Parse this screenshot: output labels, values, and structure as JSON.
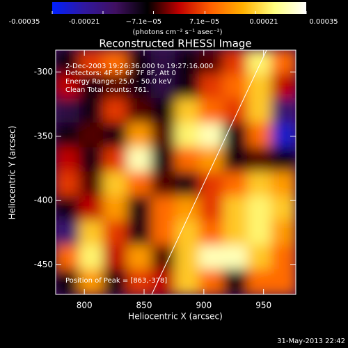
{
  "chart_data": {
    "type": "heatmap",
    "title": "Reconstructed RHESSI Image",
    "xlabel": "Heliocentric X (arcsec)",
    "ylabel": "Heliocentric Y (arcsec)",
    "annotations": [
      "2-Dec-2003 19:26:36.000 to 19:27:16.000",
      "Detectors: 4F 5F 6F 7F 8F, Att 0",
      "Energy Range: 25.0 - 50.0 keV",
      "Clean    Total counts: 761."
    ],
    "peak_label": "Position of Peak = [863,-378]",
    "footer": "31-May-2013 22:42",
    "colorbar_label": "(photons cm⁻² s⁻¹ asec⁻²)",
    "clim": [
      -0.00035,
      0.00035
    ],
    "cticks": [
      -0.00035,
      -0.00021,
      {
        "value": -7.1e-05,
        "label": "−7.1e−05"
      },
      {
        "value": 7.1e-05,
        "label": "7.1e−05"
      },
      0.00021,
      0.00035
    ],
    "colormap": [
      "#0020ff",
      "#3018a0",
      "#401060",
      "#000000",
      "#c00000",
      "#ff6000",
      "#ffb000",
      "#ffff80",
      "#ffffff"
    ],
    "xlim": [
      776,
      977
    ],
    "ylim": [
      -473,
      -283
    ],
    "xticks": [
      800,
      850,
      900,
      950
    ],
    "yticks": [
      -300,
      -350,
      -400,
      -450
    ],
    "values": [
      [
        -0.0001,
        5e-05,
        0.0001,
        -0.0001,
        -0.00015,
        -0.0001,
        -5e-05,
        5e-05,
        0.00025,
        0.0001
      ],
      [
        0,
        -0.0001,
        -5e-05,
        -0.0001,
        -0.00015,
        -0.0001,
        5e-05,
        0.0001,
        0.0002,
        0
      ],
      [
        -0.00015,
        -0.0001,
        5e-05,
        -5e-05,
        -0.0001,
        0.0002,
        0.0001,
        5e-05,
        0.0002,
        -0.0002
      ],
      [
        -0.0001,
        -5e-05,
        -0.0001,
        0.00015,
        -5e-05,
        0.00025,
        0.0003,
        -0.0001,
        0.0001,
        -0.0003
      ],
      [
        0,
        -0.0001,
        5e-05,
        0.0003,
        -0.0001,
        0.0001,
        0.00015,
        -0.0001,
        -5e-05,
        -0.0001
      ],
      [
        5e-05,
        -5e-05,
        0.0002,
        0.0001,
        -5e-05,
        -0.0001,
        5e-05,
        0.0001,
        0.0002,
        0.00015
      ],
      [
        -0.0001,
        0,
        0.00015,
        -0.0001,
        0.0001,
        0.00015,
        5e-05,
        0.0002,
        0.00025,
        0.0002
      ],
      [
        -0.0002,
        0.0002,
        5e-05,
        -0.0001,
        0.0001,
        0.0002,
        0.0001,
        0.0002,
        0.00025,
        0.00015
      ],
      [
        0.0001,
        0.00025,
        0,
        0.00015,
        -5e-05,
        0.0002,
        0.0003,
        0.0003,
        0.0002,
        0.0001
      ],
      [
        -0.0001,
        0.00015,
        -0.0001,
        5e-05,
        0,
        0.0002,
        0.0001,
        -0.0001,
        0.0001,
        0.0001
      ]
    ]
  }
}
